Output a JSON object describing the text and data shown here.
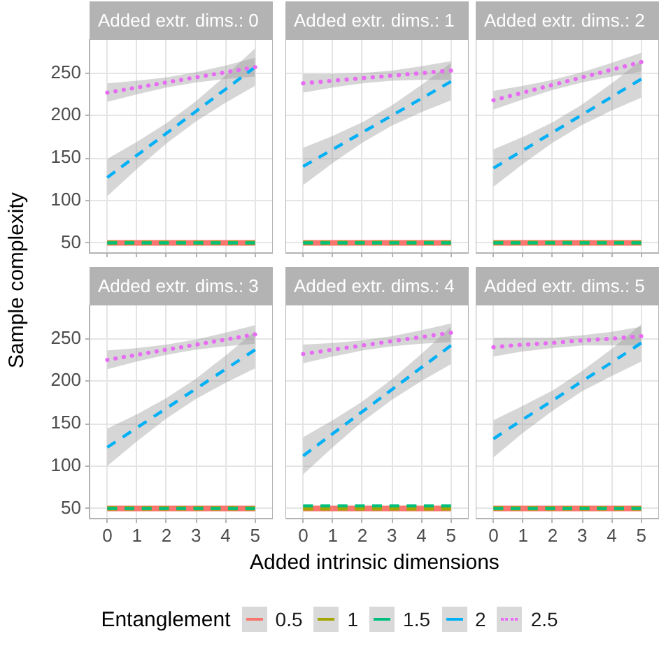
{
  "chart_data": [
    {
      "type": "line",
      "title": "Added extr. dims.: 0",
      "xlabel": "Added intrinsic dimensions",
      "ylabel": "Sample complexity",
      "legend_title": "Entanglement",
      "legend": "bottom",
      "x": [
        0,
        1,
        2,
        3,
        4,
        5
      ],
      "xlim": [
        -0.6,
        5.6
      ],
      "xticks": [
        0,
        1,
        2,
        3,
        4,
        5
      ],
      "ylim": [
        38,
        290
      ],
      "yticks": [
        50,
        100,
        150,
        200,
        250
      ],
      "grid": true,
      "tick_labels": "y",
      "series": [
        {
          "name": "0.5",
          "color": "#f8766d",
          "line_style": "solid",
          "values": [
            50,
            50,
            50,
            50,
            50,
            50
          ]
        },
        {
          "name": "1",
          "color": "#a3a500",
          "line_style": "dashed",
          "values": [
            50,
            50,
            50,
            50,
            50,
            50
          ]
        },
        {
          "name": "1.5",
          "color": "#00bf7d",
          "line_style": "dashed",
          "values": [
            50,
            50,
            50,
            50,
            50,
            50
          ]
        },
        {
          "name": "2",
          "color": "#00b0f6",
          "line_style": "dashed",
          "values": [
            127,
            153,
            179,
            205,
            231,
            257
          ],
          "lower": [
            105,
            137,
            167,
            193,
            215,
            235
          ],
          "upper": [
            149,
            169,
            191,
            217,
            247,
            279
          ]
        },
        {
          "name": "2.5",
          "color": "#e76bf3",
          "line_style": "dotted",
          "values": [
            227,
            233,
            239,
            245,
            251,
            257
          ],
          "lower": [
            216,
            225,
            233,
            239,
            243,
            246
          ],
          "upper": [
            238,
            241,
            245,
            251,
            259,
            268
          ]
        }
      ]
    },
    {
      "type": "line",
      "title": "Added extr. dims.: 1",
      "x": [
        0,
        1,
        2,
        3,
        4,
        5
      ],
      "xlim": [
        -0.6,
        5.6
      ],
      "xticks": [
        0,
        1,
        2,
        3,
        4,
        5
      ],
      "ylim": [
        38,
        290
      ],
      "yticks": [
        50,
        100,
        150,
        200,
        250
      ],
      "grid": true,
      "tick_labels": false,
      "series": [
        {
          "name": "0.5",
          "color": "#f8766d",
          "line_style": "solid",
          "values": [
            50,
            50,
            50,
            50,
            50,
            50
          ]
        },
        {
          "name": "1",
          "color": "#a3a500",
          "line_style": "dashed",
          "values": [
            50,
            50,
            50,
            50,
            50,
            50
          ]
        },
        {
          "name": "1.5",
          "color": "#00bf7d",
          "line_style": "dashed",
          "values": [
            50,
            50,
            50,
            50,
            50,
            50
          ]
        },
        {
          "name": "2",
          "color": "#00b0f6",
          "line_style": "dashed",
          "values": [
            140,
            160,
            180,
            200,
            220,
            240
          ],
          "lower": [
            118,
            144,
            168,
            188,
            204,
            218
          ],
          "upper": [
            162,
            176,
            192,
            212,
            236,
            262
          ]
        },
        {
          "name": "2.5",
          "color": "#e76bf3",
          "line_style": "dotted",
          "values": [
            238,
            241,
            244,
            247,
            250,
            253
          ],
          "lower": [
            227,
            233,
            238,
            241,
            242,
            242
          ],
          "upper": [
            249,
            249,
            250,
            253,
            258,
            264
          ]
        }
      ]
    },
    {
      "type": "line",
      "title": "Added extr. dims.: 2",
      "x": [
        0,
        1,
        2,
        3,
        4,
        5
      ],
      "xlim": [
        -0.6,
        5.6
      ],
      "xticks": [
        0,
        1,
        2,
        3,
        4,
        5
      ],
      "ylim": [
        38,
        290
      ],
      "yticks": [
        50,
        100,
        150,
        200,
        250
      ],
      "grid": true,
      "tick_labels": false,
      "series": [
        {
          "name": "0.5",
          "color": "#f8766d",
          "line_style": "solid",
          "values": [
            50,
            50,
            50,
            50,
            50,
            50
          ]
        },
        {
          "name": "1",
          "color": "#a3a500",
          "line_style": "dashed",
          "values": [
            50,
            50,
            50,
            50,
            50,
            50
          ]
        },
        {
          "name": "1.5",
          "color": "#00bf7d",
          "line_style": "dashed",
          "values": [
            50,
            50,
            50,
            50,
            50,
            50
          ]
        },
        {
          "name": "2",
          "color": "#00b0f6",
          "line_style": "dashed",
          "values": [
            138,
            159,
            180,
            201,
            222,
            243
          ],
          "lower": [
            116,
            143,
            168,
            189,
            206,
            221
          ],
          "upper": [
            160,
            175,
            192,
            213,
            238,
            265
          ]
        },
        {
          "name": "2.5",
          "color": "#e76bf3",
          "line_style": "dotted",
          "values": [
            218,
            227,
            236,
            245,
            254,
            263
          ],
          "lower": [
            207,
            219,
            230,
            239,
            246,
            252
          ],
          "upper": [
            229,
            235,
            242,
            251,
            262,
            274
          ]
        }
      ]
    },
    {
      "type": "line",
      "title": "Added extr. dims.: 3",
      "x": [
        0,
        1,
        2,
        3,
        4,
        5
      ],
      "xlim": [
        -0.6,
        5.6
      ],
      "xticks": [
        0,
        1,
        2,
        3,
        4,
        5
      ],
      "ylim": [
        38,
        290
      ],
      "yticks": [
        50,
        100,
        150,
        200,
        250
      ],
      "grid": true,
      "series": [
        {
          "name": "0.5",
          "color": "#f8766d",
          "line_style": "solid",
          "values": [
            50,
            50,
            50,
            50,
            50,
            50
          ]
        },
        {
          "name": "1",
          "color": "#a3a500",
          "line_style": "dashed",
          "values": [
            50,
            50,
            50,
            50,
            50,
            50
          ]
        },
        {
          "name": "1.5",
          "color": "#00bf7d",
          "line_style": "dashed",
          "values": [
            50,
            50,
            50,
            50,
            50,
            50
          ]
        },
        {
          "name": "2",
          "color": "#00b0f6",
          "line_style": "dashed",
          "values": [
            122,
            145,
            168,
            191,
            214,
            237
          ],
          "lower": [
            100,
            129,
            156,
            179,
            198,
            215
          ],
          "upper": [
            144,
            161,
            180,
            203,
            230,
            259
          ]
        },
        {
          "name": "2.5",
          "color": "#e76bf3",
          "line_style": "dotted",
          "values": [
            225,
            231,
            237,
            243,
            249,
            255
          ],
          "lower": [
            214,
            223,
            231,
            237,
            241,
            244
          ],
          "upper": [
            236,
            239,
            243,
            249,
            257,
            266
          ]
        }
      ]
    },
    {
      "type": "line",
      "title": "Added extr. dims.: 4",
      "x": [
        0,
        1,
        2,
        3,
        4,
        5
      ],
      "xlim": [
        -0.6,
        5.6
      ],
      "xticks": [
        0,
        1,
        2,
        3,
        4,
        5
      ],
      "ylim": [
        38,
        290
      ],
      "yticks": [
        50,
        100,
        150,
        200,
        250
      ],
      "grid": true,
      "tick_labels": "x",
      "series": [
        {
          "name": "0.5",
          "color": "#f8766d",
          "line_style": "solid",
          "values": [
            50,
            50,
            50,
            50,
            50,
            50
          ]
        },
        {
          "name": "1",
          "color": "#a3a500",
          "line_style": "dashed",
          "values": [
            50,
            50,
            50,
            50,
            50,
            50
          ]
        },
        {
          "name": "1.5",
          "color": "#00bf7d",
          "line_style": "dashed",
          "values": [
            53,
            53,
            53,
            53,
            53,
            53
          ]
        },
        {
          "name": "2",
          "color": "#00b0f6",
          "line_style": "dashed",
          "values": [
            112,
            138,
            164,
            190,
            216,
            242
          ],
          "lower": [
            90,
            122,
            152,
            178,
            200,
            220
          ],
          "upper": [
            134,
            154,
            176,
            202,
            232,
            264
          ]
        },
        {
          "name": "2.5",
          "color": "#e76bf3",
          "line_style": "dotted",
          "values": [
            232,
            237,
            242,
            247,
            252,
            257
          ],
          "lower": [
            221,
            229,
            236,
            241,
            244,
            246
          ],
          "upper": [
            243,
            245,
            248,
            253,
            260,
            268
          ]
        }
      ]
    },
    {
      "type": "line",
      "title": "Added extr. dims.: 5",
      "x": [
        0,
        1,
        2,
        3,
        4,
        5
      ],
      "xlim": [
        -0.6,
        5.6
      ],
      "xticks": [
        0,
        1,
        2,
        3,
        4,
        5
      ],
      "ylim": [
        38,
        290
      ],
      "yticks": [
        50,
        100,
        150,
        200,
        250
      ],
      "grid": true,
      "tick_labels": "x",
      "series": [
        {
          "name": "0.5",
          "color": "#f8766d",
          "line_style": "solid",
          "values": [
            50,
            50,
            50,
            50,
            50,
            50
          ]
        },
        {
          "name": "1",
          "color": "#a3a500",
          "line_style": "dashed",
          "values": [
            50,
            50,
            50,
            50,
            50,
            50
          ]
        },
        {
          "name": "1.5",
          "color": "#00bf7d",
          "line_style": "dashed",
          "values": [
            50,
            50,
            50,
            50,
            50,
            50
          ]
        },
        {
          "name": "2",
          "color": "#00b0f6",
          "line_style": "dashed",
          "values": [
            132,
            155,
            177,
            200,
            222,
            245
          ],
          "lower": [
            110,
            139,
            165,
            188,
            206,
            223
          ],
          "upper": [
            154,
            171,
            189,
            212,
            238,
            267
          ]
        },
        {
          "name": "2.5",
          "color": "#e76bf3",
          "line_style": "dotted",
          "values": [
            240,
            243,
            245,
            248,
            250,
            253
          ],
          "lower": [
            229,
            235,
            239,
            242,
            242,
            242
          ],
          "upper": [
            251,
            251,
            251,
            254,
            258,
            264
          ]
        }
      ]
    }
  ]
}
